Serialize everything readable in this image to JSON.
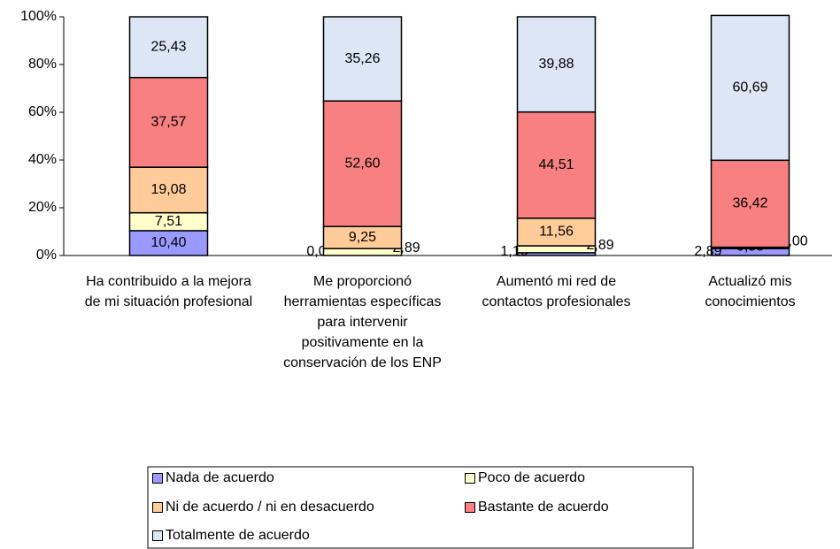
{
  "chart_data": {
    "type": "stacked_bar_100",
    "categories": [
      "Ha contribuido a la mejora de mi situación profesional",
      "Me proporcionó herramientas específicas para intervenir positivamente en la conservación de los ENP",
      "Aumentó mi red de contactos profesionales",
      "Actualizó mis conocimientos"
    ],
    "series": [
      {
        "name": "Nada de acuerdo",
        "color": "#9999ff",
        "values": [
          10.4,
          0.0,
          1.16,
          2.89
        ],
        "value_labels": [
          "10,40",
          "0,00",
          "1,16",
          "2,89"
        ]
      },
      {
        "name": "Poco de acuerdo",
        "color": "#ffffcc",
        "values": [
          7.51,
          2.89,
          2.89,
          0.0
        ],
        "value_labels": [
          "7,51",
          "2,89",
          "2,89",
          "0,00"
        ]
      },
      {
        "name": "Ni de acuerdo / ni en desacuerdo",
        "color": "#ffcc99",
        "values": [
          19.08,
          9.25,
          11.56,
          0.58
        ],
        "value_labels": [
          "19,08",
          "9,25",
          "11,56",
          "0,58"
        ]
      },
      {
        "name": "Bastante de acuerdo",
        "color": "#f88080",
        "values": [
          37.57,
          52.6,
          44.51,
          36.42
        ],
        "value_labels": [
          "37,57",
          "52,60",
          "44,51",
          "36,42"
        ]
      },
      {
        "name": "Totalmente de acuerdo",
        "color": "#dce6f4",
        "values": [
          25.43,
          35.26,
          39.88,
          60.69
        ],
        "value_labels": [
          "25,43",
          "35,26",
          "39,88",
          "60,69"
        ]
      }
    ],
    "ylim": [
      0,
      100
    ],
    "yticks": [
      {
        "value": 0,
        "label": "0%"
      },
      {
        "value": 20,
        "label": "20%"
      },
      {
        "value": 40,
        "label": "40%"
      },
      {
        "value": 60,
        "label": "60%"
      },
      {
        "value": 80,
        "label": "80%"
      },
      {
        "value": 100,
        "label": "100%"
      }
    ],
    "legend": "bottom"
  }
}
